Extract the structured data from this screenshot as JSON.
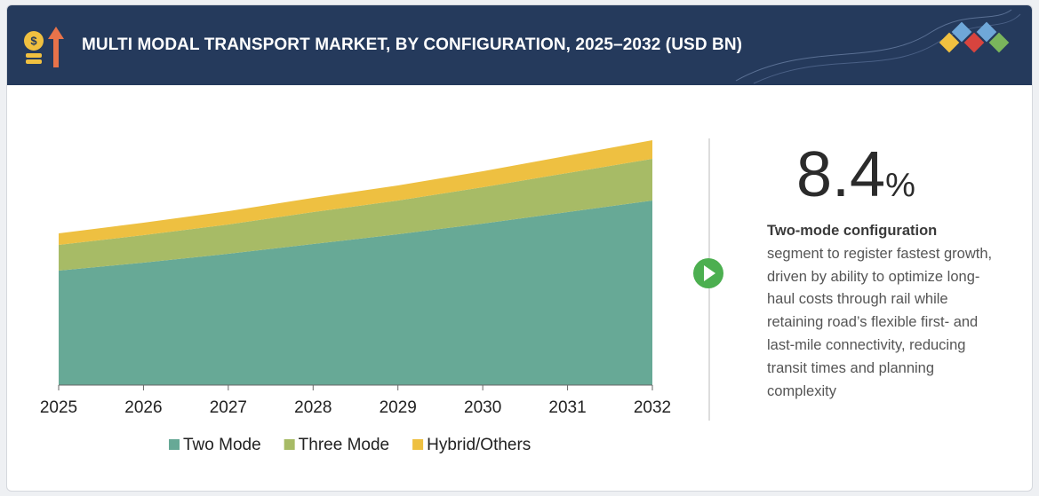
{
  "header": {
    "title": "MULTI MODAL TRANSPORT MARKET, BY CONFIGURATION, 2025–2032 (USD BN)"
  },
  "chart_data": {
    "type": "stacked-area",
    "categories": [
      "2025",
      "2026",
      "2027",
      "2028",
      "2029",
      "2030",
      "2031",
      "2032"
    ],
    "series": [
      {
        "name": "Two Mode",
        "color": "#67a996",
        "values": [
          129,
          138,
          148,
          159,
          170,
          182,
          195,
          208
        ]
      },
      {
        "name": "Three Mode",
        "color": "#a7bb66",
        "values": [
          29,
          31,
          33,
          36,
          38,
          41,
          44,
          47
        ]
      },
      {
        "name": "Hybrid/Others",
        "color": "#eec041",
        "values": [
          13,
          14,
          15,
          16,
          17,
          18,
          19.5,
          21
        ]
      }
    ],
    "ylim": [
      0,
      290
    ]
  },
  "highlight": {
    "value": "8.4",
    "unit": "%",
    "lead": "Two-mode configuration",
    "text": "segment to register fastest growth, driven by ability to optimize long-haul costs through rail while retaining road’s flexible first- and last-mile connectivity, reducing transit times and planning complexity"
  }
}
